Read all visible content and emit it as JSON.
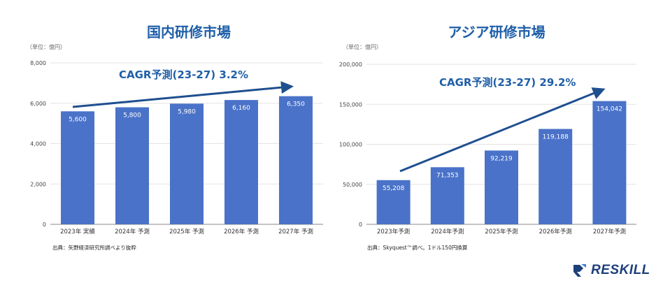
{
  "colors": {
    "bar": "#4a72c8",
    "title": "#1f5fa8",
    "arrow": "#1f4f8f",
    "grid": "#e3e3e3",
    "axis": "#888888"
  },
  "chart_data": [
    {
      "type": "bar",
      "title": "国内研修市場",
      "unit_label": "（単位：億円）",
      "categories": [
        "2023年 実績",
        "2024年 予測",
        "2025年 予測",
        "2026年 予測",
        "2027年 予測"
      ],
      "values": [
        5600,
        5800,
        5980,
        6160,
        6350
      ],
      "value_labels": [
        "5,600",
        "5,800",
        "5,980",
        "6,160",
        "6,350"
      ],
      "ylim": [
        0,
        8000
      ],
      "yticks": [
        0,
        2000,
        4000,
        6000,
        8000
      ],
      "ytick_labels": [
        "0",
        "2,000",
        "4,000",
        "6,000",
        "8,000"
      ],
      "annotation": "CAGR予測(23-27) 3.2%",
      "source": "出典：矢野経済研究所調べより抜粋",
      "grid": true
    },
    {
      "type": "bar",
      "title": "アジア研修市場",
      "unit_label": "（単位：億円）",
      "categories": [
        "2023年予測",
        "2024年予測",
        "2025年予測",
        "2026年予測",
        "2027年予測"
      ],
      "values": [
        55208,
        71353,
        92219,
        119188,
        154042
      ],
      "value_labels": [
        "55,208",
        "71,353",
        "92,219",
        "119,188",
        "154,042"
      ],
      "ylim": [
        0,
        200000
      ],
      "yticks": [
        0,
        50000,
        100000,
        150000,
        200000
      ],
      "ytick_labels": [
        "0",
        "50,000",
        "100,000",
        "150,000",
        "200,000"
      ],
      "annotation": "CAGR予測(23-27) 29.2%",
      "source": "出典：Skyquest™調べ。1ドル150円換算",
      "grid": true
    }
  ],
  "logo": {
    "text": "RESKILL",
    "icon": "reskill-logo-icon"
  }
}
